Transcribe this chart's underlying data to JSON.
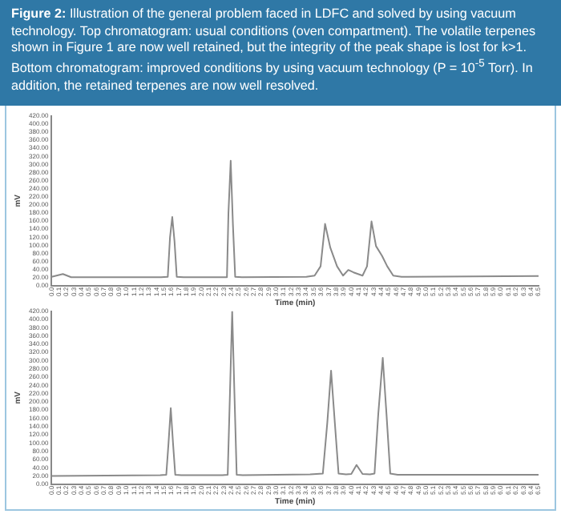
{
  "chart_data": [
    {
      "type": "line",
      "title": "Figure 2:",
      "subtitle": "Illustration of the general problem faced in LDFC and solved by using vacuum technology. Top chromatogram: usual conditions (oven compartment). The volatile terpenes shown in Figure 1 are now well retained, but the integrity of the peak shape is lost for k>1. Bottom chromatogram: improved conditions by using vacuum technology (P = 10$^{-5}$ Torr). In addition, the retained terpenes are now well resolved.",
      "xlabel": "Time (min)",
      "ylabel": "mV",
      "marker": "none",
      "grid": false,
      "legend": false,
      "x": [
        0,
        0.15,
        0.26,
        1.46,
        1.55,
        1.58,
        1.61,
        1.64,
        1.67,
        1.76,
        2.34,
        2.36,
        2.39,
        2.42,
        2.45,
        2.54,
        3.4,
        3.51,
        3.59,
        3.65,
        3.72,
        3.81,
        3.89,
        3.96,
        4.03,
        4.15,
        4.21,
        4.27,
        4.33,
        4.41,
        4.48,
        4.56,
        4.67,
        6.5
      ],
      "series": [
        {
          "color": "#8a8a8a",
          "values": [
            22,
            29,
            21,
            21,
            22,
            120,
            170,
            110,
            22,
            21,
            21,
            180,
            309,
            150,
            22,
            21,
            22,
            25,
            48,
            153,
            94,
            48,
            25,
            39,
            33,
            25,
            48,
            159,
            98,
            74,
            48,
            25,
            22,
            24
          ]
        }
      ],
      "xlim": [
        0,
        6.5
      ],
      "xticks": [
        {
          "value": 0,
          "label": "0.0"
        },
        0.1,
        0.2,
        0.3,
        0.4,
        0.5,
        0.6,
        0.7,
        0.8,
        0.9,
        {
          "value": 1,
          "label": "1.0"
        },
        1.1,
        1.2,
        1.3,
        1.4,
        1.5,
        1.6,
        1.7,
        1.8,
        1.9,
        {
          "value": 2,
          "label": "2.0"
        },
        2.1,
        2.2,
        2.3,
        2.4,
        2.5,
        2.6,
        2.7,
        2.8,
        2.9,
        {
          "value": 3,
          "label": "3.0"
        },
        3.1,
        3.2,
        3.3,
        3.4,
        3.5,
        3.6,
        3.7,
        3.8,
        3.9,
        {
          "value": 4,
          "label": "4.0"
        },
        4.1,
        4.2,
        4.3,
        4.4,
        4.5,
        4.6,
        4.7,
        4.8,
        4.9,
        {
          "value": 5,
          "label": "5.0"
        },
        5.1,
        5.2,
        5.3,
        5.4,
        5.5,
        5.6,
        5.7,
        5.8,
        5.9,
        {
          "value": 6,
          "label": "6.0"
        },
        6.1,
        6.2,
        6.3,
        6.4,
        6.5
      ],
      "ylim": [
        0,
        420
      ],
      "yticks": [
        {
          "value": 0,
          "label": "0.00"
        },
        {
          "value": 20,
          "label": "20.00"
        },
        {
          "value": 40,
          "label": "40.00"
        },
        {
          "value": 60,
          "label": "60.00"
        },
        {
          "value": 80,
          "label": "80.00"
        },
        {
          "value": 100,
          "label": "100.00"
        },
        {
          "value": 120,
          "label": "120.00"
        },
        {
          "value": 140,
          "label": "140.00"
        },
        {
          "value": 160,
          "label": "160.00"
        },
        {
          "value": 180,
          "label": "180.00"
        },
        {
          "value": 200,
          "label": "200.00"
        },
        {
          "value": 220,
          "label": "220.00"
        },
        {
          "value": 240,
          "label": "240.00"
        },
        {
          "value": 260,
          "label": "260.00"
        },
        {
          "value": 280,
          "label": "280.00"
        },
        {
          "value": 300,
          "label": "300.00"
        },
        {
          "value": 320,
          "label": "320.00"
        },
        {
          "value": 340,
          "label": "340.00"
        },
        {
          "value": 360,
          "label": "360.00"
        },
        {
          "value": 380,
          "label": "380.00"
        },
        {
          "value": 400,
          "label": "400.00"
        },
        {
          "value": 420,
          "label": "420.00"
        }
      ]
    },
    {
      "type": "line",
      "xlabel": "Time (min)",
      "ylabel": "mV",
      "marker": "none",
      "grid": false,
      "legend": false,
      "x": [
        0,
        1.45,
        1.53,
        1.56,
        1.59,
        1.62,
        1.65,
        1.73,
        2.28,
        2.35,
        2.38,
        2.41,
        2.44,
        2.47,
        2.55,
        3.45,
        3.62,
        3.68,
        3.73,
        3.78,
        3.83,
        3.93,
        4.0,
        4.07,
        4.15,
        4.25,
        4.31,
        4.36,
        4.42,
        4.47,
        4.52,
        4.62,
        6.5
      ],
      "series": [
        {
          "color": "#8a8a8a",
          "values": [
            20,
            22,
            23,
            100,
            185,
            100,
            23,
            22,
            22,
            23,
            220,
            420,
            220,
            23,
            22,
            24,
            26,
            150,
            276,
            150,
            26,
            24,
            25,
            47,
            25,
            24,
            26,
            170,
            307,
            170,
            26,
            23,
            23
          ]
        }
      ],
      "xlim": [
        0,
        6.5
      ],
      "xticks": [
        {
          "value": 0,
          "label": "0.0"
        },
        0.1,
        0.2,
        0.3,
        0.4,
        0.5,
        0.6,
        0.7,
        0.8,
        0.9,
        {
          "value": 1,
          "label": "1.0"
        },
        1.1,
        1.2,
        1.3,
        1.4,
        1.5,
        1.6,
        1.7,
        1.8,
        1.9,
        {
          "value": 2,
          "label": "2.0"
        },
        2.1,
        2.2,
        2.3,
        2.4,
        2.5,
        2.6,
        2.7,
        2.8,
        2.9,
        {
          "value": 3,
          "label": "3.0"
        },
        3.1,
        3.2,
        3.3,
        3.4,
        3.5,
        3.6,
        3.7,
        3.8,
        3.9,
        {
          "value": 4,
          "label": "4.0"
        },
        4.1,
        4.2,
        4.3,
        4.4,
        4.5,
        4.6,
        4.7,
        4.8,
        4.9,
        {
          "value": 5,
          "label": "5.0"
        },
        5.1,
        5.2,
        5.3,
        5.4,
        5.5,
        5.6,
        5.7,
        5.8,
        5.9,
        {
          "value": 6,
          "label": "6.0"
        },
        6.1,
        6.2,
        6.3,
        6.4,
        6.5
      ],
      "ylim": [
        0,
        420
      ],
      "yticks": [
        {
          "value": 0,
          "label": "0.00"
        },
        {
          "value": 20,
          "label": "20.00"
        },
        {
          "value": 40,
          "label": "40.00"
        },
        {
          "value": 60,
          "label": "60.00"
        },
        {
          "value": 80,
          "label": "80.00"
        },
        {
          "value": 100,
          "label": "100.00"
        },
        {
          "value": 120,
          "label": "120.00"
        },
        {
          "value": 140,
          "label": "140.00"
        },
        {
          "value": 160,
          "label": "160.00"
        },
        {
          "value": 180,
          "label": "180.00"
        },
        {
          "value": 200,
          "label": "200.00"
        },
        {
          "value": 220,
          "label": "220.00"
        },
        {
          "value": 240,
          "label": "240.00"
        },
        {
          "value": 260,
          "label": "260.00"
        },
        {
          "value": 280,
          "label": "280.00"
        },
        {
          "value": 300,
          "label": "300.00"
        },
        {
          "value": 320,
          "label": "320.00"
        },
        {
          "value": 340,
          "label": "340.00"
        },
        {
          "value": 360,
          "label": "360.00"
        },
        {
          "value": 380,
          "label": "380.00"
        },
        {
          "value": 400,
          "label": "400.00"
        },
        {
          "value": 420,
          "label": "420.00"
        }
      ]
    }
  ]
}
